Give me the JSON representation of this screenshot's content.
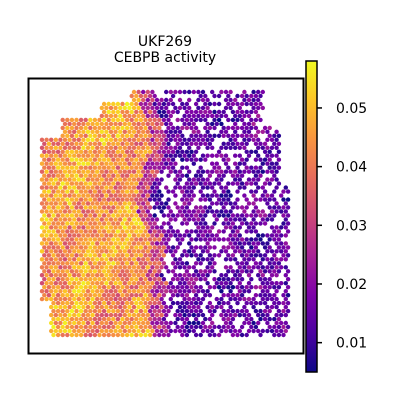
{
  "chart_data": {
    "type": "heatmap",
    "subtype": "spatial-spot-map",
    "title_line1": "UKF269",
    "title_line2": "CEBPB activity",
    "xlabel": "",
    "ylabel": "",
    "axis_ticks_shown": false,
    "colorbar": {
      "colormap": "plasma",
      "range": [
        0.005,
        0.058
      ],
      "ticks": [
        0.01,
        0.02,
        0.03,
        0.04,
        0.05
      ],
      "tick_labels": [
        "0.01",
        "0.02",
        "0.03",
        "0.04",
        "0.05"
      ],
      "placement": "right"
    },
    "regions": [
      {
        "description": "left tissue band",
        "approx_activity": 0.045
      },
      {
        "description": "right tissue band",
        "approx_activity": 0.015
      }
    ],
    "notes": "Hexagonal spot grid; high CEBPB activity on the left half, low activity on the right half."
  }
}
